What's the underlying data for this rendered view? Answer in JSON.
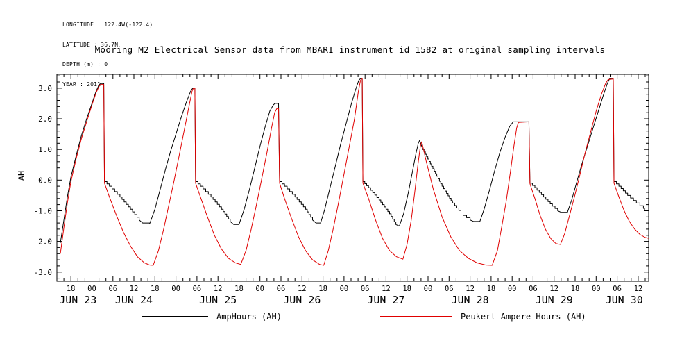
{
  "meta": {
    "longitude": "LONGITUDE : 122.4W(-122.4)",
    "latitude": "LATITUDE : 36.7N",
    "depth": "DEPTH (m) : 0",
    "year": "YEAR : 2011"
  },
  "chart_data": {
    "type": "line",
    "title": "Mooring M2 Electrical Sensor data from MBARI instrument id 1582 at original sampling intervals",
    "ylabel": "AH",
    "x_axis": {
      "unit": "hours from JUN 23 2011 00:00",
      "lim": [
        14,
        183
      ],
      "major_tick_start_hour": 18,
      "major_tick_step_hours": 6,
      "major_tick_end_hour": 180,
      "minor_tick_step_hours": 2,
      "hour_label_format": "HH",
      "day_labels": [
        {
          "label": "JUN 23",
          "hour": 20
        },
        {
          "label": "JUN 24",
          "hour": 36
        },
        {
          "label": "JUN 25",
          "hour": 60
        },
        {
          "label": "JUN 26",
          "hour": 84
        },
        {
          "label": "JUN 27",
          "hour": 108
        },
        {
          "label": "JUN 28",
          "hour": 132
        },
        {
          "label": "JUN 29",
          "hour": 156
        },
        {
          "label": "JUN 30",
          "hour": 176
        }
      ]
    },
    "y_axis": {
      "label": "AH",
      "lim": [
        -3.3,
        3.45
      ],
      "major_ticks": [
        -3.0,
        -2.0,
        -1.0,
        0.0,
        1.0,
        2.0,
        3.0
      ],
      "minor_tick_step": 0.2
    },
    "grid": false,
    "legend_position": "bottom",
    "series": [
      {
        "name": "AmpHours (AH)",
        "color": "#000000",
        "stepped": true,
        "step_size_ah": 0.08,
        "points": [
          [
            15,
            -2.05
          ],
          [
            16,
            -1.3
          ],
          [
            17,
            -0.55
          ],
          [
            18,
            0.1
          ],
          [
            19.5,
            0.8
          ],
          [
            21,
            1.45
          ],
          [
            22.5,
            2.0
          ],
          [
            24,
            2.5
          ],
          [
            25.2,
            2.9
          ],
          [
            26,
            3.1
          ],
          [
            26.5,
            3.15
          ],
          [
            27.4,
            3.15
          ],
          [
            27.6,
            -0.05
          ],
          [
            29,
            -0.2
          ],
          [
            32,
            -0.55
          ],
          [
            35,
            -0.95
          ],
          [
            37.5,
            -1.3
          ],
          [
            38.5,
            -1.4
          ],
          [
            40.5,
            -1.42
          ],
          [
            42,
            -0.95
          ],
          [
            43.5,
            -0.3
          ],
          [
            45,
            0.35
          ],
          [
            46.5,
            0.95
          ],
          [
            48,
            1.5
          ],
          [
            49.5,
            2.05
          ],
          [
            51,
            2.55
          ],
          [
            52.2,
            2.9
          ],
          [
            52.8,
            3.0
          ],
          [
            53.4,
            3.0
          ],
          [
            53.6,
            -0.05
          ],
          [
            55,
            -0.2
          ],
          [
            58,
            -0.55
          ],
          [
            61,
            -0.95
          ],
          [
            63.5,
            -1.35
          ],
          [
            64.5,
            -1.45
          ],
          [
            66,
            -1.45
          ],
          [
            67.5,
            -0.95
          ],
          [
            69,
            -0.3
          ],
          [
            70.5,
            0.4
          ],
          [
            72,
            1.1
          ],
          [
            73.5,
            1.75
          ],
          [
            74.8,
            2.25
          ],
          [
            75.8,
            2.45
          ],
          [
            76.3,
            2.5
          ],
          [
            77.3,
            2.5
          ],
          [
            77.6,
            -0.05
          ],
          [
            79,
            -0.2
          ],
          [
            82,
            -0.55
          ],
          [
            85,
            -0.95
          ],
          [
            87,
            -1.3
          ],
          [
            88,
            -1.4
          ],
          [
            89.3,
            -1.4
          ],
          [
            90.5,
            -0.95
          ],
          [
            92,
            -0.25
          ],
          [
            93.5,
            0.45
          ],
          [
            95,
            1.15
          ],
          [
            96.5,
            1.8
          ],
          [
            98,
            2.45
          ],
          [
            99.3,
            2.95
          ],
          [
            100.2,
            3.25
          ],
          [
            100.6,
            3.3
          ],
          [
            101.2,
            3.3
          ],
          [
            101.4,
            -0.05
          ],
          [
            103,
            -0.25
          ],
          [
            106,
            -0.65
          ],
          [
            109,
            -1.1
          ],
          [
            110.8,
            -1.45
          ],
          [
            111.8,
            -1.5
          ],
          [
            113,
            -1.1
          ],
          [
            114.3,
            -0.45
          ],
          [
            115.5,
            0.25
          ],
          [
            116.5,
            0.85
          ],
          [
            117.2,
            1.2
          ],
          [
            117.6,
            1.3
          ],
          [
            118.5,
            1.0
          ],
          [
            121,
            0.45
          ],
          [
            124,
            -0.2
          ],
          [
            127,
            -0.75
          ],
          [
            130,
            -1.15
          ],
          [
            132,
            -1.3
          ],
          [
            133,
            -1.35
          ],
          [
            134.8,
            -1.35
          ],
          [
            136,
            -0.95
          ],
          [
            137.5,
            -0.35
          ],
          [
            139,
            0.3
          ],
          [
            140.5,
            0.9
          ],
          [
            142,
            1.4
          ],
          [
            143.3,
            1.75
          ],
          [
            144.3,
            1.9
          ],
          [
            148.8,
            1.9
          ],
          [
            149.1,
            -0.1
          ],
          [
            150.5,
            -0.25
          ],
          [
            153,
            -0.55
          ],
          [
            155.5,
            -0.85
          ],
          [
            157,
            -1.0
          ],
          [
            158,
            -1.05
          ],
          [
            159.8,
            -1.05
          ],
          [
            161,
            -0.65
          ],
          [
            162.5,
            -0.05
          ],
          [
            164,
            0.55
          ],
          [
            165.5,
            1.1
          ],
          [
            167,
            1.65
          ],
          [
            168.5,
            2.2
          ],
          [
            170,
            2.75
          ],
          [
            171.2,
            3.15
          ],
          [
            171.8,
            3.3
          ],
          [
            172.9,
            3.3
          ],
          [
            173.1,
            -0.05
          ],
          [
            174.5,
            -0.2
          ],
          [
            177,
            -0.5
          ],
          [
            179.5,
            -0.75
          ],
          [
            181.5,
            -0.92
          ],
          [
            182,
            -0.95
          ]
        ]
      },
      {
        "name": "Peukert Ampere Hours (AH)",
        "color": "#e00000",
        "stepped": false,
        "points": [
          [
            15,
            -2.4
          ],
          [
            16,
            -1.55
          ],
          [
            17,
            -0.75
          ],
          [
            18,
            -0.05
          ],
          [
            19.5,
            0.7
          ],
          [
            21,
            1.35
          ],
          [
            22.5,
            1.9
          ],
          [
            24,
            2.45
          ],
          [
            25.2,
            2.85
          ],
          [
            26,
            3.05
          ],
          [
            26.5,
            3.12
          ],
          [
            27.4,
            3.12
          ],
          [
            27.6,
            -0.1
          ],
          [
            29,
            -0.55
          ],
          [
            31,
            -1.15
          ],
          [
            33,
            -1.7
          ],
          [
            35,
            -2.15
          ],
          [
            37,
            -2.5
          ],
          [
            39,
            -2.7
          ],
          [
            40.5,
            -2.77
          ],
          [
            41.5,
            -2.78
          ],
          [
            43,
            -2.3
          ],
          [
            44.5,
            -1.6
          ],
          [
            46,
            -0.8
          ],
          [
            47.5,
            0.0
          ],
          [
            49,
            0.85
          ],
          [
            50.5,
            1.7
          ],
          [
            51.8,
            2.45
          ],
          [
            52.6,
            2.9
          ],
          [
            53.0,
            3.0
          ],
          [
            53.4,
            3.0
          ],
          [
            53.6,
            -0.1
          ],
          [
            55,
            -0.55
          ],
          [
            57,
            -1.2
          ],
          [
            59,
            -1.8
          ],
          [
            61,
            -2.25
          ],
          [
            63,
            -2.55
          ],
          [
            65,
            -2.7
          ],
          [
            66.5,
            -2.75
          ],
          [
            68,
            -2.3
          ],
          [
            69.5,
            -1.6
          ],
          [
            71,
            -0.8
          ],
          [
            72.5,
            0.05
          ],
          [
            74,
            0.9
          ],
          [
            75.3,
            1.7
          ],
          [
            76.2,
            2.2
          ],
          [
            76.8,
            2.33
          ],
          [
            77.3,
            2.35
          ],
          [
            77.6,
            -0.1
          ],
          [
            79,
            -0.6
          ],
          [
            81,
            -1.25
          ],
          [
            83,
            -1.85
          ],
          [
            85,
            -2.3
          ],
          [
            87,
            -2.6
          ],
          [
            89,
            -2.75
          ],
          [
            90.2,
            -2.78
          ],
          [
            91.5,
            -2.3
          ],
          [
            93,
            -1.55
          ],
          [
            94.5,
            -0.7
          ],
          [
            96,
            0.2
          ],
          [
            97.5,
            1.1
          ],
          [
            99,
            2.0
          ],
          [
            100.1,
            2.9
          ],
          [
            100.7,
            3.25
          ],
          [
            101.0,
            3.3
          ],
          [
            101.2,
            3.3
          ],
          [
            101.4,
            -0.1
          ],
          [
            103,
            -0.6
          ],
          [
            105,
            -1.3
          ],
          [
            107,
            -1.9
          ],
          [
            109,
            -2.3
          ],
          [
            111,
            -2.5
          ],
          [
            112.8,
            -2.58
          ],
          [
            114,
            -2.1
          ],
          [
            115.2,
            -1.3
          ],
          [
            116.2,
            -0.4
          ],
          [
            117.1,
            0.5
          ],
          [
            117.8,
            1.1
          ],
          [
            118.2,
            1.25
          ],
          [
            119.5,
            0.6
          ],
          [
            121.5,
            -0.3
          ],
          [
            124,
            -1.2
          ],
          [
            126.5,
            -1.85
          ],
          [
            129,
            -2.3
          ],
          [
            131.5,
            -2.55
          ],
          [
            134,
            -2.7
          ],
          [
            136.5,
            -2.77
          ],
          [
            138.3,
            -2.78
          ],
          [
            139.8,
            -2.3
          ],
          [
            141,
            -1.55
          ],
          [
            142.3,
            -0.7
          ],
          [
            143.5,
            0.25
          ],
          [
            144.5,
            1.1
          ],
          [
            145.3,
            1.7
          ],
          [
            145.8,
            1.88
          ],
          [
            148.8,
            1.9
          ],
          [
            149.1,
            -0.12
          ],
          [
            150.5,
            -0.6
          ],
          [
            152,
            -1.15
          ],
          [
            153.5,
            -1.6
          ],
          [
            155,
            -1.9
          ],
          [
            156.5,
            -2.07
          ],
          [
            157.8,
            -2.1
          ],
          [
            159,
            -1.75
          ],
          [
            160.3,
            -1.2
          ],
          [
            161.8,
            -0.55
          ],
          [
            163.3,
            0.15
          ],
          [
            165,
            0.95
          ],
          [
            166.5,
            1.6
          ],
          [
            168,
            2.25
          ],
          [
            169.5,
            2.8
          ],
          [
            170.7,
            3.15
          ],
          [
            171.4,
            3.28
          ],
          [
            172.9,
            3.3
          ],
          [
            173.1,
            -0.1
          ],
          [
            174.5,
            -0.55
          ],
          [
            176,
            -1.0
          ],
          [
            177.5,
            -1.35
          ],
          [
            179,
            -1.6
          ],
          [
            180.5,
            -1.77
          ],
          [
            182,
            -1.87
          ],
          [
            183,
            -1.9
          ]
        ]
      }
    ]
  }
}
